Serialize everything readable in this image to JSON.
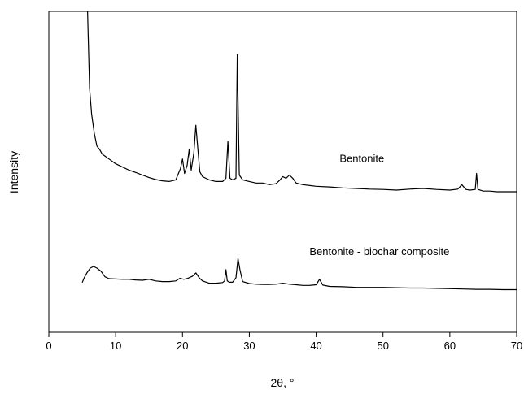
{
  "chart_data": {
    "type": "line",
    "xlabel": "2θ, °",
    "ylabel": "Intensity",
    "xlim": [
      0,
      70
    ],
    "ylim": [
      0,
      100
    ],
    "xticks": [
      0,
      10,
      20,
      30,
      40,
      50,
      60,
      70
    ],
    "yticks_visible": false,
    "grid": false,
    "legend": "none",
    "series": [
      {
        "name": "Bentonite",
        "color": "#000000",
        "points": [
          [
            5.8,
            100
          ],
          [
            6.1,
            76
          ],
          [
            6.4,
            68
          ],
          [
            6.8,
            62
          ],
          [
            7.2,
            58
          ],
          [
            7.6,
            57
          ],
          [
            8.0,
            55.5
          ],
          [
            9,
            54
          ],
          [
            10,
            52.5
          ],
          [
            11,
            51.5
          ],
          [
            12,
            50.5
          ],
          [
            13,
            49.8
          ],
          [
            14,
            49
          ],
          [
            15,
            48.2
          ],
          [
            16,
            47.6
          ],
          [
            17,
            47.2
          ],
          [
            18,
            47
          ],
          [
            19,
            47.5
          ],
          [
            19.7,
            51
          ],
          [
            20,
            54
          ],
          [
            20.3,
            49.5
          ],
          [
            20.7,
            52
          ],
          [
            21,
            57
          ],
          [
            21.3,
            50.5
          ],
          [
            21.7,
            56
          ],
          [
            22,
            64.5
          ],
          [
            22.3,
            57
          ],
          [
            22.6,
            50
          ],
          [
            23,
            48.5
          ],
          [
            24,
            47.5
          ],
          [
            25,
            47
          ],
          [
            26,
            47
          ],
          [
            26.5,
            48
          ],
          [
            26.8,
            59.5
          ],
          [
            27.1,
            48
          ],
          [
            27.5,
            47.5
          ],
          [
            28,
            48
          ],
          [
            28.2,
            86.5
          ],
          [
            28.5,
            49
          ],
          [
            29,
            47.5
          ],
          [
            30,
            47
          ],
          [
            31,
            46.5
          ],
          [
            32,
            46.5
          ],
          [
            33,
            46
          ],
          [
            34,
            46.3
          ],
          [
            34.6,
            47.5
          ],
          [
            35,
            48.5
          ],
          [
            35.5,
            48
          ],
          [
            36,
            49
          ],
          [
            36.5,
            48
          ],
          [
            37,
            46.5
          ],
          [
            38,
            46
          ],
          [
            40,
            45.5
          ],
          [
            42,
            45.3
          ],
          [
            44,
            45
          ],
          [
            46,
            44.8
          ],
          [
            48,
            44.6
          ],
          [
            50,
            44.5
          ],
          [
            52,
            44.3
          ],
          [
            54,
            44.6
          ],
          [
            56,
            44.8
          ],
          [
            58,
            44.5
          ],
          [
            60,
            44.3
          ],
          [
            61.2,
            44.6
          ],
          [
            61.8,
            46
          ],
          [
            62.4,
            44.5
          ],
          [
            63,
            44.3
          ],
          [
            63.8,
            44.5
          ],
          [
            64.0,
            49.5
          ],
          [
            64.2,
            44.5
          ],
          [
            65,
            44
          ],
          [
            66,
            44
          ],
          [
            67,
            43.8
          ],
          [
            68,
            43.8
          ],
          [
            70,
            43.8
          ]
        ]
      },
      {
        "name": "Bentonite - biochar composite",
        "color": "#000000",
        "points": [
          [
            5.0,
            15.5
          ],
          [
            5.3,
            17
          ],
          [
            5.7,
            18.5
          ],
          [
            6.2,
            20
          ],
          [
            6.7,
            20.5
          ],
          [
            7.2,
            20
          ],
          [
            7.8,
            19
          ],
          [
            8.4,
            17.3
          ],
          [
            9,
            16.7
          ],
          [
            10,
            16.6
          ],
          [
            11,
            16.5
          ],
          [
            12,
            16.5
          ],
          [
            13,
            16.3
          ],
          [
            14,
            16.2
          ],
          [
            15,
            16.5
          ],
          [
            16,
            16
          ],
          [
            17,
            15.8
          ],
          [
            18,
            15.8
          ],
          [
            19,
            16
          ],
          [
            19.6,
            16.8
          ],
          [
            20.2,
            16.5
          ],
          [
            20.8,
            16.8
          ],
          [
            21.5,
            17.5
          ],
          [
            22,
            18.5
          ],
          [
            22.5,
            17
          ],
          [
            23,
            16
          ],
          [
            24,
            15.3
          ],
          [
            25,
            15.3
          ],
          [
            26,
            15.5
          ],
          [
            26.3,
            16
          ],
          [
            26.5,
            19.5
          ],
          [
            26.7,
            16
          ],
          [
            27,
            15.6
          ],
          [
            27.5,
            15.6
          ],
          [
            28,
            17
          ],
          [
            28.3,
            23
          ],
          [
            28.6,
            19.5
          ],
          [
            29,
            15.8
          ],
          [
            30,
            15.2
          ],
          [
            31,
            15
          ],
          [
            32,
            14.9
          ],
          [
            33,
            14.9
          ],
          [
            34,
            15
          ],
          [
            35,
            15.3
          ],
          [
            36,
            15
          ],
          [
            37,
            14.8
          ],
          [
            38,
            14.6
          ],
          [
            39,
            14.6
          ],
          [
            40,
            14.8
          ],
          [
            40.5,
            16.5
          ],
          [
            41,
            14.7
          ],
          [
            42,
            14.3
          ],
          [
            44,
            14.2
          ],
          [
            46,
            14
          ],
          [
            48,
            14
          ],
          [
            50,
            14
          ],
          [
            52,
            13.9
          ],
          [
            54,
            13.8
          ],
          [
            56,
            13.8
          ],
          [
            58,
            13.7
          ],
          [
            60,
            13.6
          ],
          [
            62,
            13.5
          ],
          [
            64,
            13.4
          ],
          [
            66,
            13.4
          ],
          [
            68,
            13.3
          ],
          [
            70,
            13.3
          ]
        ]
      }
    ],
    "annotations": [
      {
        "text": "Bentonite",
        "x": 43.5,
        "y": 53
      },
      {
        "text": "Bentonite - biochar composite",
        "x": 39,
        "y": 24
      }
    ]
  }
}
